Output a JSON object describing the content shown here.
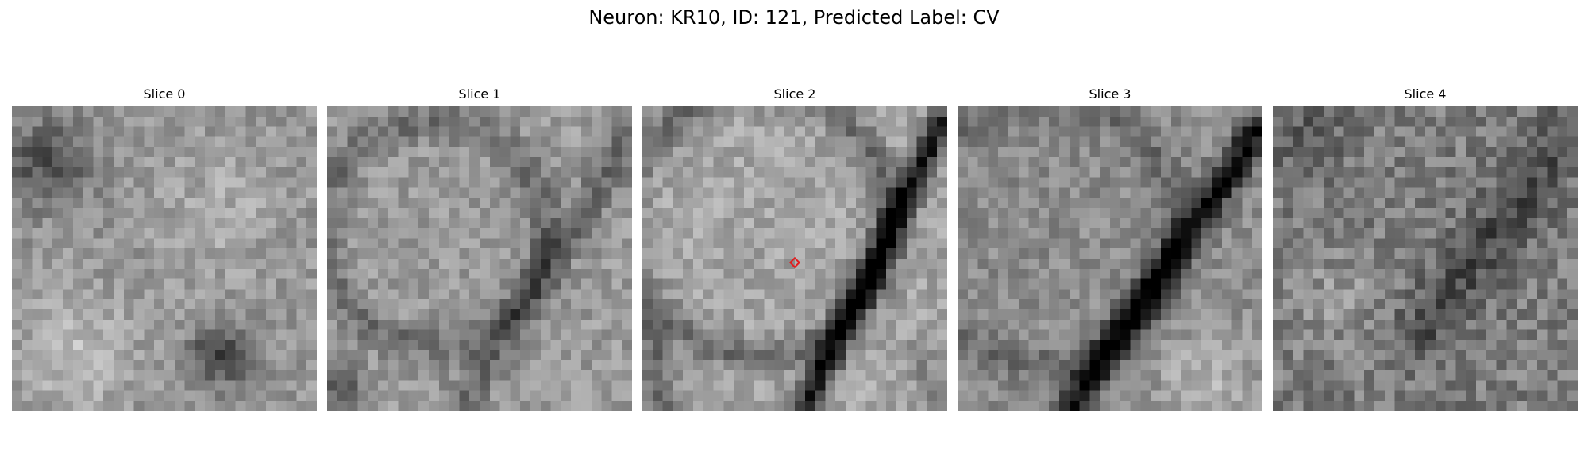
{
  "figure": {
    "title": "Neuron: KR10, ID: 121, Predicted Label: CV"
  },
  "panels": [
    {
      "title": "Slice 0",
      "seed": 11,
      "pattern": "slice0"
    },
    {
      "title": "Slice 1",
      "seed": 23,
      "pattern": "slice1"
    },
    {
      "title": "Slice 2",
      "seed": 37,
      "pattern": "slice2",
      "has_marker": true
    },
    {
      "title": "Slice 3",
      "seed": 51,
      "pattern": "slice3"
    },
    {
      "title": "Slice 4",
      "seed": 67,
      "pattern": "slice4"
    }
  ],
  "marker": {
    "color": "#e41a1c",
    "shape": "diamond",
    "panel_index": 2
  },
  "image": {
    "grid_size": 30,
    "colormap": "gray"
  }
}
